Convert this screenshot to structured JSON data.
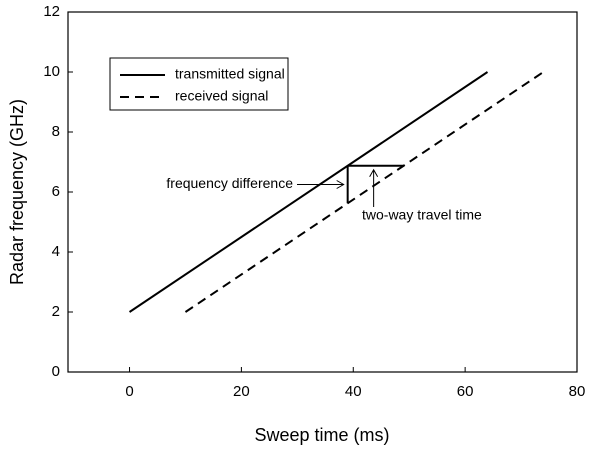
{
  "chart_data": {
    "type": "line",
    "xlabel": "Sweep time (ms)",
    "ylabel": "Radar frequency (GHz)",
    "xlim": [
      -11,
      80
    ],
    "xticks": [
      0,
      20,
      40,
      60,
      80
    ],
    "ylim": [
      0,
      12
    ],
    "yticks": [
      0,
      2,
      4,
      6,
      8,
      10,
      12
    ],
    "legend": "upper left",
    "series": [
      {
        "name": "transmitted signal",
        "color": "#000000",
        "dash": "solid",
        "x": [
          0,
          64
        ],
        "values": [
          2,
          10
        ]
      },
      {
        "name": "received signal",
        "color": "#000000",
        "dash": "dashed",
        "x": [
          10,
          74
        ],
        "values": [
          2,
          10
        ]
      }
    ],
    "annotations": [
      {
        "text": "frequency difference",
        "x": 39,
        "y": [
          5.625,
          6.875
        ]
      },
      {
        "text": "two-way travel time",
        "x": [
          39,
          49
        ],
        "y": 6.875
      }
    ]
  }
}
